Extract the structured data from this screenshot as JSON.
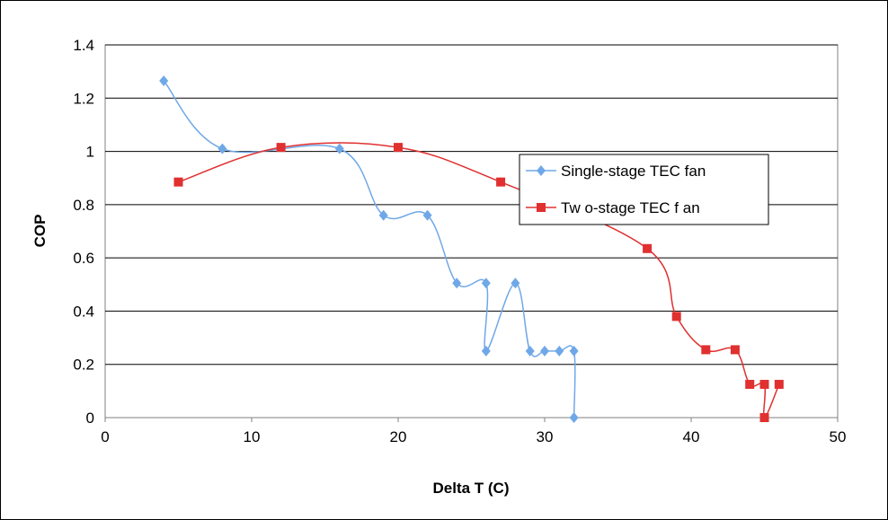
{
  "chart_data": {
    "type": "line",
    "title": "",
    "xlabel": "Delta T (C)",
    "ylabel": "COP",
    "xlim": [
      0,
      50
    ],
    "ylim": [
      0,
      1.4
    ],
    "x_ticks": [
      "0",
      "10",
      "20",
      "30",
      "40",
      "50"
    ],
    "y_ticks": [
      "0",
      "0.2",
      "0.4",
      "0.6",
      "0.8",
      "1",
      "1.2",
      "1.4"
    ],
    "grid": "horizontal",
    "legend_position": "right",
    "series": [
      {
        "name": "Single-stage TEC fan",
        "color": "#6FA8E8",
        "marker": "diamond",
        "points": [
          [
            4,
            1.265
          ],
          [
            8,
            1.01
          ],
          [
            16,
            1.01
          ],
          [
            19,
            0.76
          ],
          [
            22,
            0.76
          ],
          [
            24,
            0.505
          ],
          [
            26,
            0.505
          ],
          [
            26,
            0.25
          ],
          [
            28,
            0.505
          ],
          [
            29,
            0.25
          ],
          [
            30,
            0.25
          ],
          [
            31,
            0.25
          ],
          [
            32,
            0.25
          ],
          [
            32,
            0
          ]
        ]
      },
      {
        "name": "Tw o-stage TEC f an",
        "color": "#E03030",
        "marker": "square",
        "points": [
          [
            5,
            0.885
          ],
          [
            12,
            1.015
          ],
          [
            20,
            1.015
          ],
          [
            27,
            0.885
          ],
          [
            37,
            0.635
          ],
          [
            39,
            0.38
          ],
          [
            41,
            0.255
          ],
          [
            43,
            0.255
          ],
          [
            44,
            0.125
          ],
          [
            45,
            0.125
          ],
          [
            45,
            0
          ],
          [
            46,
            0.125
          ]
        ]
      }
    ]
  }
}
